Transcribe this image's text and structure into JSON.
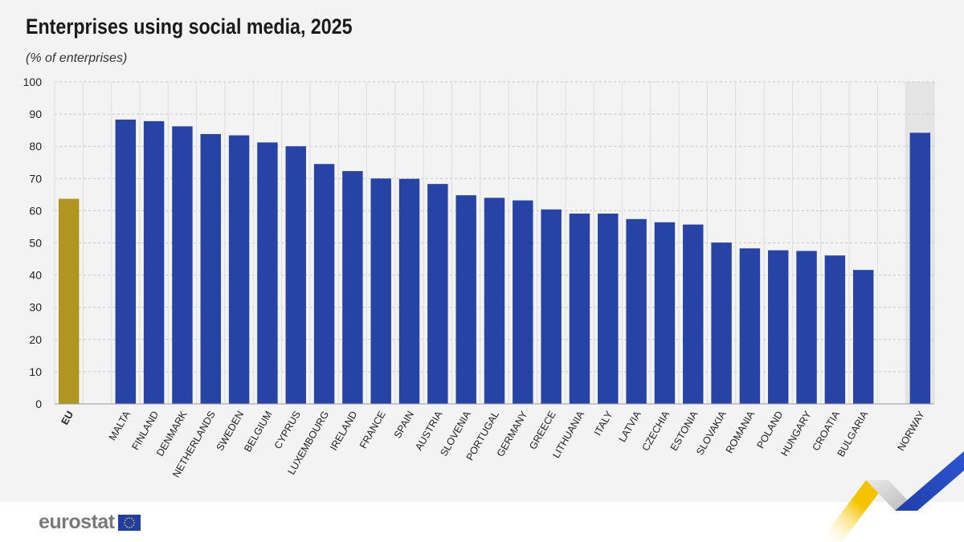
{
  "chart_data": {
    "type": "bar",
    "title": "Enterprises using social media, 2025",
    "subtitle": "(% of enterprises)",
    "xlabel": "",
    "ylabel": "",
    "ylim": [
      0,
      100
    ],
    "yticks": [
      0,
      10,
      20,
      30,
      40,
      50,
      60,
      70,
      80,
      90,
      100
    ],
    "grid": true,
    "categories": [
      "EU",
      "MALTA",
      "FINLAND",
      "DENMARK",
      "NETHERLANDS",
      "SWEDEN",
      "BELGIUM",
      "CYPRUS",
      "LUXEMBOURG",
      "IRELAND",
      "FRANCE",
      "SPAIN",
      "AUSTRIA",
      "SLOVENIA",
      "PORTUGAL",
      "GERMANY",
      "GREECE",
      "LITHUANIA",
      "ITALY",
      "LATVIA",
      "CZECHIA",
      "ESTONIA",
      "SLOVAKIA",
      "ROMANIA",
      "POLAND",
      "HUNGARY",
      "CROATIA",
      "BULGARIA",
      "NORWAY"
    ],
    "values": [
      63.7,
      88.3,
      87.8,
      86.2,
      83.8,
      83.4,
      81.2,
      80.0,
      74.5,
      72.3,
      70.0,
      69.9,
      68.3,
      64.8,
      64.0,
      63.2,
      60.4,
      59.1,
      59.1,
      57.4,
      56.4,
      55.7,
      50.1,
      48.3,
      47.7,
      47.5,
      46.1,
      41.6,
      84.2
    ],
    "colors": {
      "eu_bar": "#b09520",
      "country_bar": "#2643a5",
      "highlight_band": "#e4e4e4"
    }
  },
  "footer": {
    "logo_text": "eurostat",
    "flag_icon": "eu-flag-icon"
  }
}
